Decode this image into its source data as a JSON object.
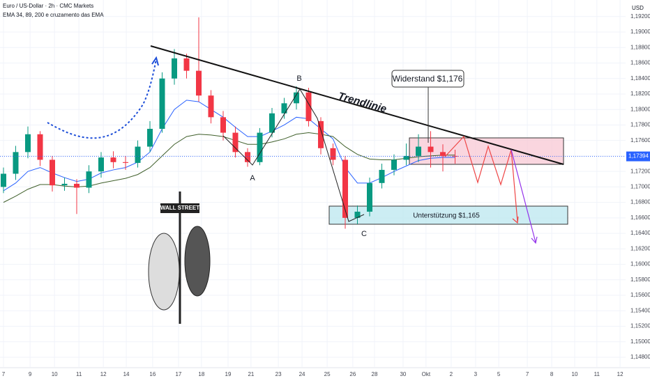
{
  "chart_data": {
    "type": "candlestick",
    "title": "Euro / US-Dollar · 2h · CMC Markets",
    "subtitle": "EMA 34, 89, 200 e cruzamento das EMA",
    "y_axis_label": "USD",
    "annotations": {
      "trend": "Trendlinie",
      "a": "A",
      "b": "B",
      "c": "C",
      "resistance": "Widerstand $1,176",
      "support": "Unterstützung $1,165",
      "sign": "WALL STREET"
    },
    "current_price": {
      "value": 1.17394,
      "label": "1,17394"
    },
    "up_color": "#089981",
    "down_color": "#f23645",
    "x": [
      0,
      0.5,
      1,
      1.5,
      2,
      2.5,
      3,
      3.5,
      4,
      4.5,
      5,
      5.5,
      6,
      6.5,
      7,
      7.5,
      8,
      8.5,
      9,
      9.5,
      10,
      10.5,
      11,
      11.5,
      12,
      12.5,
      13,
      13.5,
      14,
      14.5,
      15,
      15.5,
      16,
      16.5,
      17,
      17.5,
      18,
      18.5
    ],
    "open": [
      1.17,
      1.1717,
      1.1745,
      1.1768,
      1.1735,
      1.1702,
      1.1704,
      1.1699,
      1.172,
      1.1738,
      1.1732,
      1.1731,
      1.1752,
      1.1775,
      1.184,
      1.1866,
      1.185,
      1.1818,
      1.179,
      1.177,
      1.1745,
      1.1732,
      1.177,
      1.1795,
      1.1808,
      1.1822,
      1.1785,
      1.175,
      1.1735,
      1.166,
      1.1668,
      1.1705,
      1.1722,
      1.1735,
      1.174,
      1.1752,
      1.1745,
      1.174
    ],
    "high": [
      1.1725,
      1.1753,
      1.1778,
      1.1772,
      1.174,
      1.1712,
      1.171,
      1.1728,
      1.1745,
      1.1746,
      1.174,
      1.176,
      1.1785,
      1.1848,
      1.1878,
      1.1872,
      1.1919,
      1.1825,
      1.1798,
      1.1778,
      1.175,
      1.1776,
      1.1802,
      1.1815,
      1.183,
      1.1828,
      1.179,
      1.1756,
      1.174,
      1.1676,
      1.1712,
      1.173,
      1.1742,
      1.1756,
      1.1768,
      1.1772,
      1.1755,
      1.1748
    ],
    "low": [
      1.1692,
      1.1709,
      1.1737,
      1.1727,
      1.1694,
      1.1695,
      1.1665,
      1.1692,
      1.1712,
      1.1724,
      1.1722,
      1.1725,
      1.1745,
      1.177,
      1.1832,
      1.184,
      1.181,
      1.1782,
      1.176,
      1.1738,
      1.1726,
      1.1728,
      1.1764,
      1.1788,
      1.18,
      1.1778,
      1.1742,
      1.1728,
      1.1646,
      1.1652,
      1.1662,
      1.1698,
      1.1715,
      1.1728,
      1.1732,
      1.1725,
      1.172,
      1.173
    ],
    "close": [
      1.1717,
      1.1745,
      1.1768,
      1.1735,
      1.1702,
      1.1704,
      1.1699,
      1.172,
      1.1738,
      1.1732,
      1.1731,
      1.1752,
      1.1775,
      1.184,
      1.1866,
      1.185,
      1.1818,
      1.179,
      1.177,
      1.1745,
      1.1732,
      1.177,
      1.1795,
      1.1808,
      1.1822,
      1.1785,
      1.175,
      1.1735,
      1.166,
      1.1668,
      1.1705,
      1.1722,
      1.1735,
      1.174,
      1.1752,
      1.1745,
      1.174,
      1.1739
    ],
    "overlays": [
      {
        "color": "#2962ff",
        "values": [
          1.1695,
          1.1705,
          1.172,
          1.1725,
          1.1718,
          1.1712,
          1.1707,
          1.171,
          1.1718,
          1.1722,
          1.1725,
          1.1732,
          1.1745,
          1.1775,
          1.18,
          1.1812,
          1.181,
          1.18,
          1.179,
          1.1777,
          1.1765,
          1.1765,
          1.1772,
          1.178,
          1.179,
          1.1788,
          1.1775,
          1.1762,
          1.1725,
          1.1705,
          1.1705,
          1.1712,
          1.172,
          1.1727,
          1.1734,
          1.1737,
          1.1738,
          1.1738
        ]
      },
      {
        "color": "#3f5f2a",
        "values": [
          1.168,
          1.1688,
          1.1697,
          1.1703,
          1.1703,
          1.1701,
          1.17,
          1.1701,
          1.1705,
          1.1708,
          1.1711,
          1.1716,
          1.1725,
          1.174,
          1.1755,
          1.1765,
          1.1768,
          1.1767,
          1.1765,
          1.176,
          1.1755,
          1.1755,
          1.1758,
          1.1762,
          1.1768,
          1.177,
          1.1768,
          1.1765,
          1.1752,
          1.1742,
          1.1736,
          1.1735,
          1.1735,
          1.1737,
          1.1739,
          1.174,
          1.1741,
          1.1741
        ]
      }
    ],
    "xlim": [
      -0.143,
      25.486
    ],
    "xticks": [
      {
        "value": 0,
        "label": "7"
      },
      {
        "value": 1.09,
        "label": "9"
      },
      {
        "value": 2.09,
        "label": "10"
      },
      {
        "value": 3.09,
        "label": "11"
      },
      {
        "value": 4.09,
        "label": "12"
      },
      {
        "value": 5.03,
        "label": "14"
      },
      {
        "value": 6.11,
        "label": "16"
      },
      {
        "value": 7.17,
        "label": "17"
      },
      {
        "value": 8.11,
        "label": "18"
      },
      {
        "value": 9.2,
        "label": "19"
      },
      {
        "value": 10.14,
        "label": "21"
      },
      {
        "value": 11.26,
        "label": "23"
      },
      {
        "value": 12.23,
        "label": "24"
      },
      {
        "value": 13.26,
        "label": "25"
      },
      {
        "value": 14.31,
        "label": "26"
      },
      {
        "value": 15.2,
        "label": "28"
      },
      {
        "value": 16.37,
        "label": "30"
      },
      {
        "value": 17.31,
        "label": "Okt"
      },
      {
        "value": 18.34,
        "label": "2"
      },
      {
        "value": 19.34,
        "label": "3"
      },
      {
        "value": 20.29,
        "label": "5"
      },
      {
        "value": 21.46,
        "label": "7"
      },
      {
        "value": 22.46,
        "label": "8"
      },
      {
        "value": 23.4,
        "label": "10"
      },
      {
        "value": 24.31,
        "label": "11"
      },
      {
        "value": 25.26,
        "label": "12"
      }
    ],
    "ylim": [
      1.14674,
      1.19414
    ],
    "yticks": [
      {
        "value": 1.148,
        "label": "1,14800"
      },
      {
        "value": 1.15,
        "label": "1,15000"
      },
      {
        "value": 1.152,
        "label": "1,15200"
      },
      {
        "value": 1.154,
        "label": "1,15400"
      },
      {
        "value": 1.156,
        "label": "1,15600"
      },
      {
        "value": 1.158,
        "label": "1,15800"
      },
      {
        "value": 1.16,
        "label": "1,16000"
      },
      {
        "value": 1.162,
        "label": "1,16200"
      },
      {
        "value": 1.164,
        "label": "1,16400"
      },
      {
        "value": 1.166,
        "label": "1,16600"
      },
      {
        "value": 1.168,
        "label": "1,16800"
      },
      {
        "value": 1.17,
        "label": "1,17000"
      },
      {
        "value": 1.172,
        "label": "1,17200"
      },
      {
        "value": 1.174,
        "label": "1,17400"
      },
      {
        "value": 1.176,
        "label": "1,17600"
      },
      {
        "value": 1.178,
        "label": "1,17800"
      },
      {
        "value": 1.18,
        "label": "1,18000"
      },
      {
        "value": 1.182,
        "label": "1,18200"
      },
      {
        "value": 1.184,
        "label": "1,18400"
      },
      {
        "value": 1.186,
        "label": "1,18600"
      },
      {
        "value": 1.188,
        "label": "1,18800"
      },
      {
        "value": 1.19,
        "label": "1,19000"
      },
      {
        "value": 1.192,
        "label": "1,19200"
      }
    ],
    "grid": true
  }
}
